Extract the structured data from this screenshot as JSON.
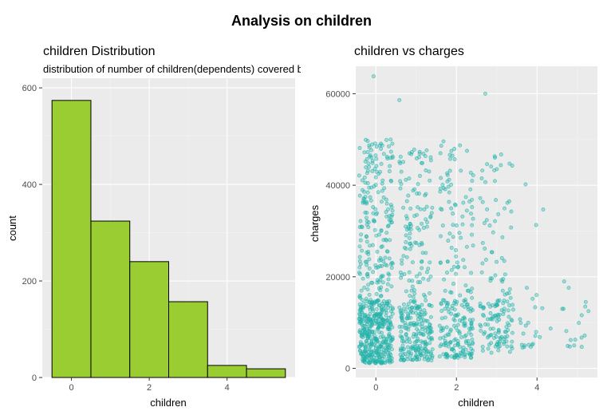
{
  "figure": {
    "title": "Analysis on children"
  },
  "chart_data": [
    {
      "type": "bar",
      "title": "children Distribution",
      "subtitle": "distribution of number of children(dependents) covered by health insurance",
      "xlabel": "children",
      "ylabel": "count",
      "categories": [
        0,
        1,
        2,
        3,
        4,
        5
      ],
      "values": [
        574,
        324,
        240,
        157,
        25,
        18
      ],
      "xlim": [
        -0.75,
        5.75
      ],
      "ylim": [
        0,
        620
      ],
      "x_ticks": [
        0,
        2,
        4
      ],
      "y_ticks": [
        0,
        200,
        400,
        600
      ],
      "colors": {
        "bar_fill": "#9ACD32",
        "bar_border": "#000000",
        "panel_bg": "#EBEBEB"
      },
      "grid": true
    },
    {
      "type": "scatter",
      "title": "children vs charges",
      "xlabel": "children",
      "ylabel": "charges",
      "xlim": [
        -0.5,
        5.5
      ],
      "ylim": [
        -2000,
        66000
      ],
      "x_ticks": [
        0,
        2,
        4
      ],
      "y_ticks": [
        0,
        20000,
        40000,
        60000
      ],
      "jitter": "points jittered horizontally around each integer children value",
      "colors": {
        "point": "#20B2AA",
        "panel_bg": "#EBEBEB"
      },
      "grid": true,
      "groups": [
        {
          "children": 0,
          "n": 574,
          "charges_range": [
            1100,
            63800
          ],
          "low_band_max": 15000,
          "high_band": [
            30000,
            50000
          ]
        },
        {
          "children": 1,
          "n": 324,
          "charges_range": [
            1700,
            58600
          ],
          "low_band_max": 14000,
          "high_band": [
            30000,
            48000
          ]
        },
        {
          "children": 2,
          "n": 240,
          "charges_range": [
            2300,
            49600
          ],
          "low_band_max": 15000,
          "high_band": [
            30000,
            49000
          ]
        },
        {
          "children": 3,
          "n": 157,
          "charges_range": [
            3400,
            60000
          ],
          "low_band_max": 15000,
          "high_band": [
            30000,
            47000
          ]
        },
        {
          "children": 4,
          "n": 25,
          "charges_range": [
            4500,
            40200
          ],
          "low_band_max": 14000,
          "high_band": [
            24000,
            40200
          ]
        },
        {
          "children": 5,
          "n": 18,
          "charges_range": [
            4700,
            19000
          ],
          "low_band_max": 13000,
          "high_band": [
            13000,
            19000
          ]
        }
      ]
    }
  ]
}
